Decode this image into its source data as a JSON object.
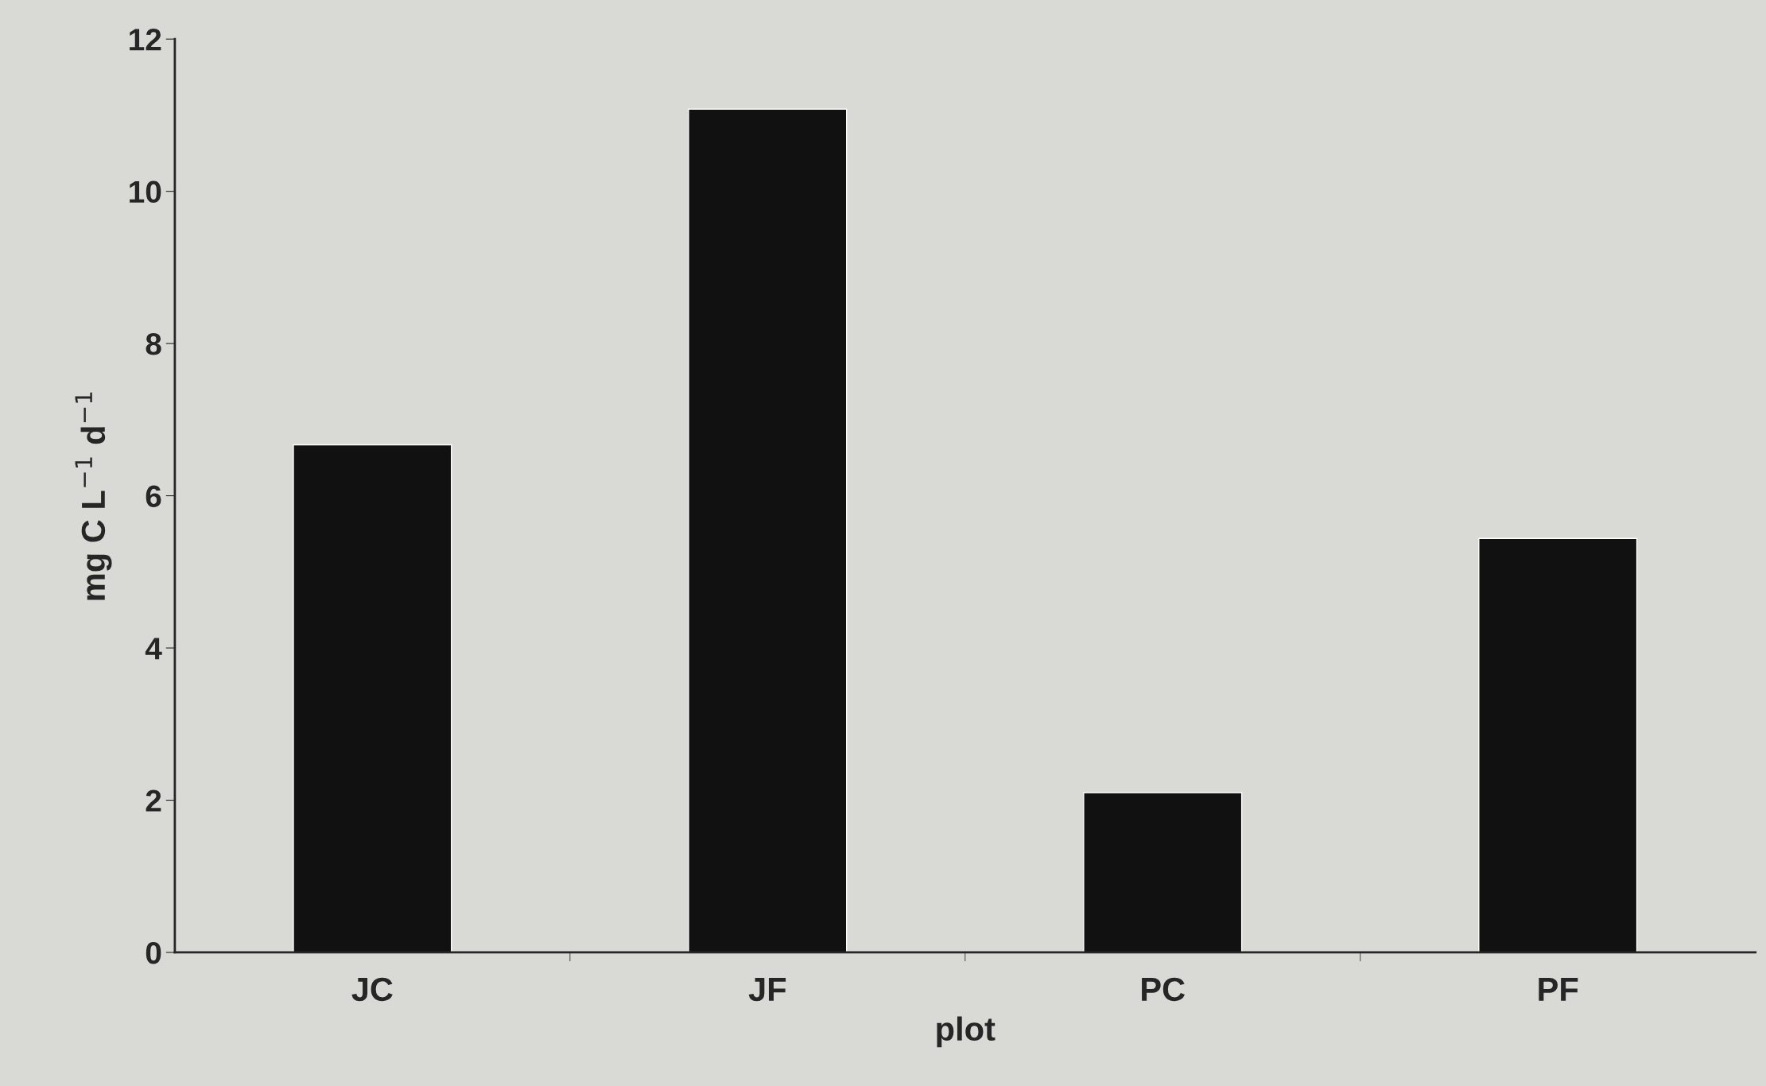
{
  "chart_data": {
    "type": "bar",
    "xlabel": "plot",
    "ylabel": "mg C L$^{−1}$ d$^{−1}$",
    "categories": [
      "JC",
      "JF",
      "PC",
      "PF"
    ],
    "values": [
      6.67,
      11.08,
      2.1,
      5.44
    ],
    "color": "#111111",
    "ylim": [
      0,
      12
    ],
    "yticks": [
      0,
      2,
      4,
      6,
      8,
      10,
      12
    ],
    "grid": false
  }
}
